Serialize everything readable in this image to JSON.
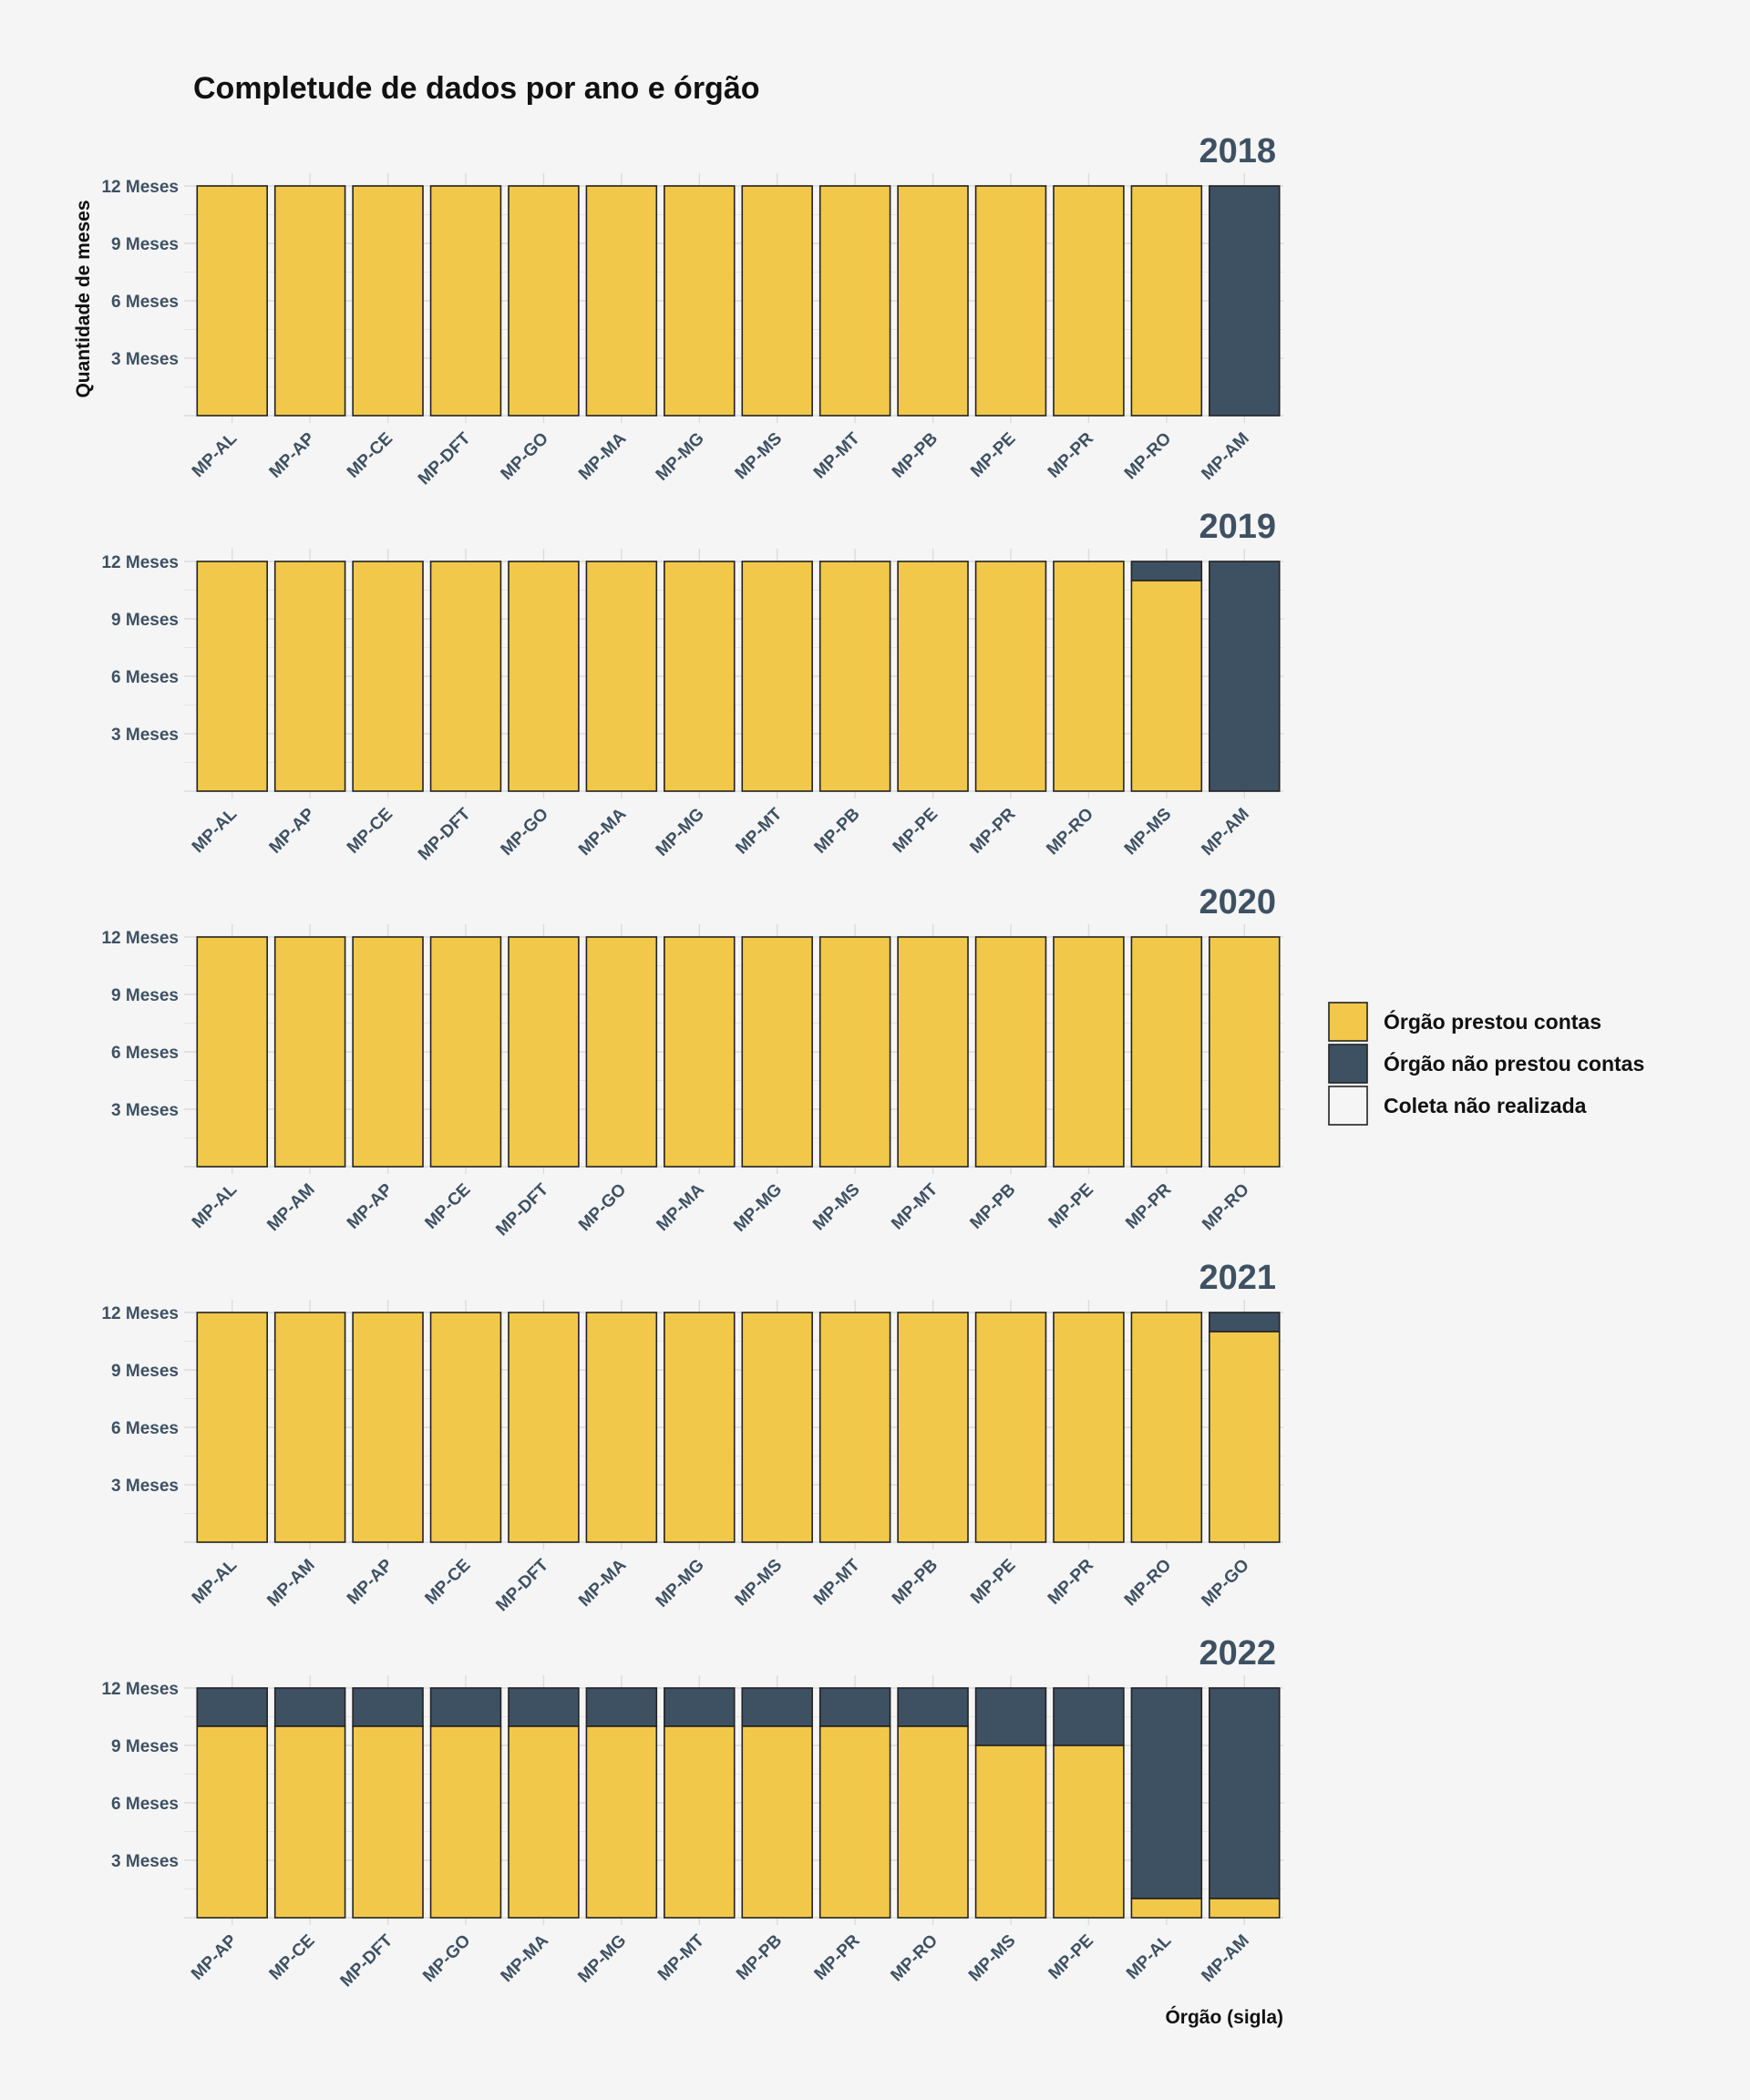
{
  "chart_data": {
    "type": "bar",
    "title": "Completude de dados por ano e órgão",
    "ylabel": "Quantidade de meses",
    "xlabel": "Órgão (sigla)",
    "ylim": [
      0,
      12
    ],
    "y_ticks": [
      {
        "value": 3,
        "label": "3 Meses"
      },
      {
        "value": 6,
        "label": "6 Meses"
      },
      {
        "value": 9,
        "label": "9 Meses"
      },
      {
        "value": 12,
        "label": "12 Meses"
      }
    ],
    "stacked": true,
    "colors": {
      "prestou": "#f2c84b",
      "nao_prestou": "#3e5163",
      "nao_realizada": "#f5f5f5"
    },
    "legend": {
      "placement": "right",
      "entries": [
        {
          "key": "prestou",
          "label": "Órgão prestou contas"
        },
        {
          "key": "nao_prestou",
          "label": "Órgão não prestou contas"
        },
        {
          "key": "nao_realizada",
          "label": "Coleta não realizada"
        }
      ]
    },
    "panels": [
      {
        "year": "2018",
        "categories": [
          "MP-AL",
          "MP-AP",
          "MP-CE",
          "MP-DFT",
          "MP-GO",
          "MP-MA",
          "MP-MG",
          "MP-MS",
          "MP-MT",
          "MP-PB",
          "MP-PE",
          "MP-PR",
          "MP-RO",
          "MP-AM"
        ],
        "series": [
          {
            "key": "prestou",
            "values": [
              12,
              12,
              12,
              12,
              12,
              12,
              12,
              12,
              12,
              12,
              12,
              12,
              12,
              0
            ]
          },
          {
            "key": "nao_prestou",
            "values": [
              0,
              0,
              0,
              0,
              0,
              0,
              0,
              0,
              0,
              0,
              0,
              0,
              0,
              12
            ]
          }
        ]
      },
      {
        "year": "2019",
        "categories": [
          "MP-AL",
          "MP-AP",
          "MP-CE",
          "MP-DFT",
          "MP-GO",
          "MP-MA",
          "MP-MG",
          "MP-MT",
          "MP-PB",
          "MP-PE",
          "MP-PR",
          "MP-RO",
          "MP-MS",
          "MP-AM"
        ],
        "series": [
          {
            "key": "prestou",
            "values": [
              12,
              12,
              12,
              12,
              12,
              12,
              12,
              12,
              12,
              12,
              12,
              12,
              11,
              0
            ]
          },
          {
            "key": "nao_prestou",
            "values": [
              0,
              0,
              0,
              0,
              0,
              0,
              0,
              0,
              0,
              0,
              0,
              0,
              1,
              12
            ]
          }
        ]
      },
      {
        "year": "2020",
        "categories": [
          "MP-AL",
          "MP-AM",
          "MP-AP",
          "MP-CE",
          "MP-DFT",
          "MP-GO",
          "MP-MA",
          "MP-MG",
          "MP-MS",
          "MP-MT",
          "MP-PB",
          "MP-PE",
          "MP-PR",
          "MP-RO"
        ],
        "series": [
          {
            "key": "prestou",
            "values": [
              12,
              12,
              12,
              12,
              12,
              12,
              12,
              12,
              12,
              12,
              12,
              12,
              12,
              12
            ]
          },
          {
            "key": "nao_prestou",
            "values": [
              0,
              0,
              0,
              0,
              0,
              0,
              0,
              0,
              0,
              0,
              0,
              0,
              0,
              0
            ]
          }
        ]
      },
      {
        "year": "2021",
        "categories": [
          "MP-AL",
          "MP-AM",
          "MP-AP",
          "MP-CE",
          "MP-DFT",
          "MP-MA",
          "MP-MG",
          "MP-MS",
          "MP-MT",
          "MP-PB",
          "MP-PE",
          "MP-PR",
          "MP-RO",
          "MP-GO"
        ],
        "series": [
          {
            "key": "prestou",
            "values": [
              12,
              12,
              12,
              12,
              12,
              12,
              12,
              12,
              12,
              12,
              12,
              12,
              12,
              11
            ]
          },
          {
            "key": "nao_prestou",
            "values": [
              0,
              0,
              0,
              0,
              0,
              0,
              0,
              0,
              0,
              0,
              0,
              0,
              0,
              1
            ]
          }
        ]
      },
      {
        "year": "2022",
        "categories": [
          "MP-AP",
          "MP-CE",
          "MP-DFT",
          "MP-GO",
          "MP-MA",
          "MP-MG",
          "MP-MT",
          "MP-PB",
          "MP-PR",
          "MP-RO",
          "MP-MS",
          "MP-PE",
          "MP-AL",
          "MP-AM"
        ],
        "series": [
          {
            "key": "prestou",
            "values": [
              10,
              10,
              10,
              10,
              10,
              10,
              10,
              10,
              10,
              10,
              9,
              9,
              1,
              1
            ]
          },
          {
            "key": "nao_prestou",
            "values": [
              2,
              2,
              2,
              2,
              2,
              2,
              2,
              2,
              2,
              2,
              3,
              3,
              11,
              11
            ]
          }
        ]
      }
    ]
  }
}
